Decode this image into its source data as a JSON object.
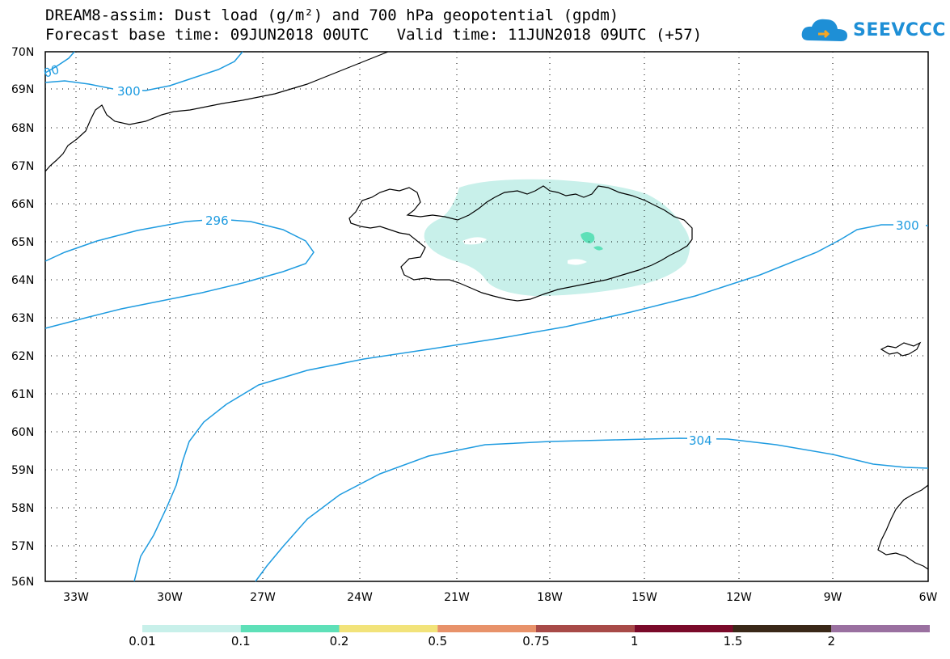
{
  "title": {
    "line1": "DREAM8-assim: Dust load (g/m²) and 700 hPa geopotential (gpdm)",
    "line2": "Forecast base time: 09JUN2018 00UTC   Valid time: 11JUN2018 09UTC (+57)"
  },
  "logo": {
    "text": "SEEVCCC"
  },
  "axes": {
    "lat_labels": [
      "70N",
      "69N",
      "68N",
      "67N",
      "66N",
      "65N",
      "64N",
      "63N",
      "62N",
      "61N",
      "60N",
      "59N",
      "58N",
      "57N",
      "56N"
    ],
    "lon_labels": [
      "33W",
      "30W",
      "27W",
      "24W",
      "21W",
      "18W",
      "15W",
      "12W",
      "9W",
      "6W"
    ]
  },
  "contours": {
    "labels": [
      "300",
      "296",
      "300",
      "304",
      "00"
    ]
  },
  "colorbar": {
    "colors": [
      "#c8f0ea",
      "#5ee0b8",
      "#f2e37a",
      "#e8926a",
      "#a84a48",
      "#7a0a2a",
      "#3a2818",
      "#9a70a0"
    ],
    "labels": [
      "0.01",
      "0.1",
      "0.2",
      "0.5",
      "0.75",
      "1",
      "1.5",
      "2"
    ]
  }
}
